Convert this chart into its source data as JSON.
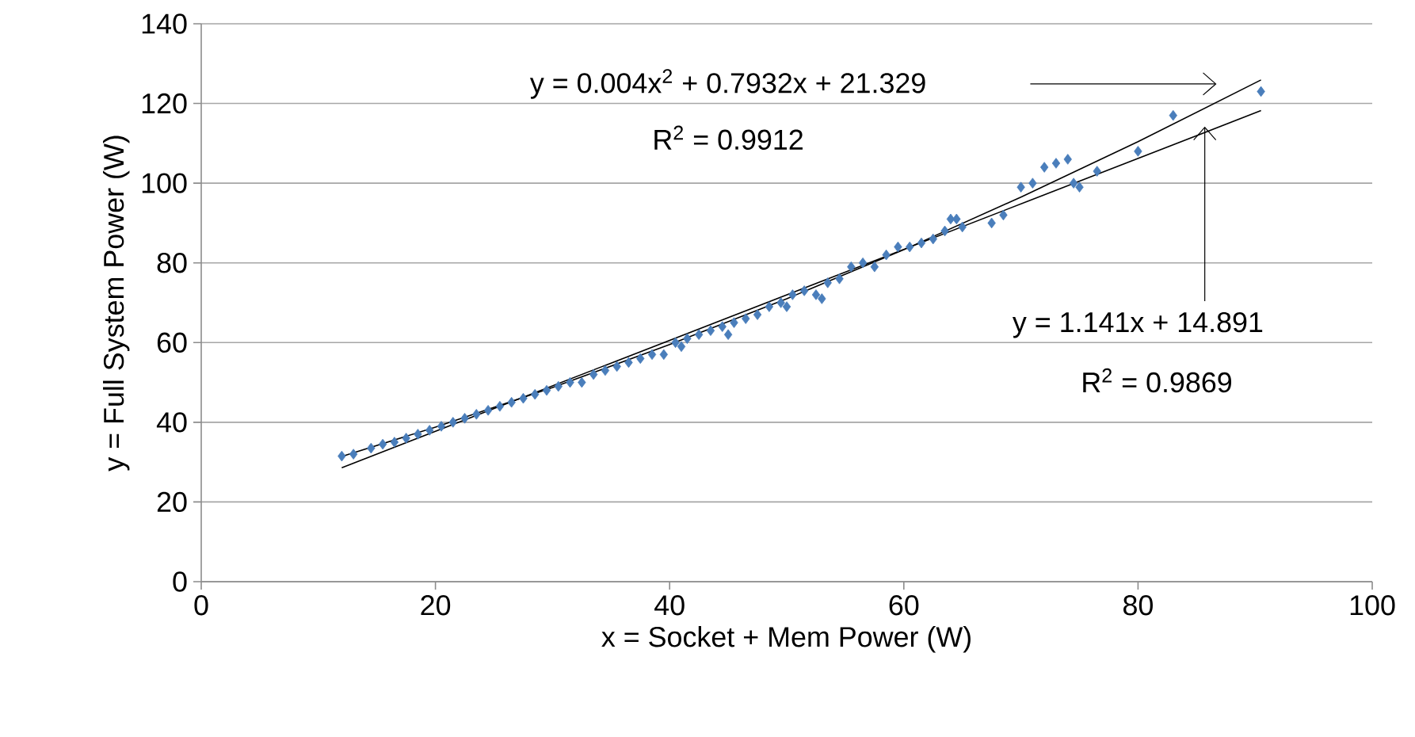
{
  "chart_data": {
    "type": "scatter",
    "xlabel": "x = Socket + Mem Power (W)",
    "ylabel": "y = Full System Power (W)",
    "xlim": [
      0,
      100
    ],
    "xticks": [
      0,
      20,
      40,
      60,
      80,
      100
    ],
    "ylim": [
      0,
      140
    ],
    "yticks": [
      0,
      20,
      40,
      60,
      80,
      100,
      120,
      140
    ],
    "grid": "y",
    "marker": "diamond",
    "series": [
      {
        "color": "#4a7ebb",
        "x": [
          12,
          13,
          14.5,
          15.5,
          16.5,
          17.5,
          18.5,
          19.5,
          20.5,
          21.5,
          22.5,
          23.5,
          24.5,
          25.5,
          26.5,
          27.5,
          28.5,
          29.5,
          30.5,
          31.5,
          32.5,
          33.5,
          34.5,
          35.5,
          36.5,
          37.5,
          38.5,
          39.5,
          40.5,
          41,
          41.5,
          42.5,
          43.5,
          44.5,
          45,
          45.5,
          46.5,
          47.5,
          48.5,
          49.5,
          50,
          50.5,
          51.5,
          52.5,
          53,
          53.5,
          54.5,
          55.5,
          56.5,
          57.5,
          58.5,
          59.5,
          60.5,
          61.5,
          62.5,
          63.5,
          64,
          64.5,
          65,
          67.5,
          68.5,
          70,
          71,
          72,
          73,
          74,
          74.5,
          75,
          76.5,
          80,
          83,
          90.5
        ],
        "values": [
          31.5,
          32,
          33.5,
          34.5,
          35,
          36,
          37,
          38,
          39,
          40,
          41,
          42,
          43,
          44,
          45,
          46,
          47,
          48,
          49,
          50,
          50,
          52,
          53,
          54,
          55,
          56,
          57,
          57,
          60,
          59,
          61,
          62,
          63,
          64,
          62,
          65,
          66,
          67,
          69,
          70,
          69,
          72,
          73,
          72,
          71,
          75,
          76,
          79,
          80,
          79,
          82,
          84,
          84,
          85,
          86,
          88,
          91,
          91,
          89,
          90,
          92,
          99,
          100,
          104,
          105,
          106,
          100,
          99,
          103,
          108,
          117,
          123
        ]
      },
      {
        "type": "line",
        "color": "#000000",
        "marker": "none",
        "x": [
          12,
          20,
          30,
          40,
          50,
          60,
          70,
          80,
          90.5
        ],
        "values": [
          31.4,
          38.8,
          48.7,
          59.5,
          71.0,
          83.3,
          96.5,
          110.4,
          125.9
        ]
      },
      {
        "type": "line",
        "color": "#000000",
        "marker": "none",
        "x": [
          12,
          90.5
        ],
        "values": [
          28.6,
          118.2
        ]
      }
    ],
    "annotations": [
      "y = 0.004x$^{2}$ + 0.7932x + 21.329",
      "R$^{2}$ = 0.9912",
      {
        "text": "y = 1.141x + 14.891",
        "x": 85.7,
        "y": 114.2
      },
      "R$^{2}$ = 0.9869"
    ]
  }
}
